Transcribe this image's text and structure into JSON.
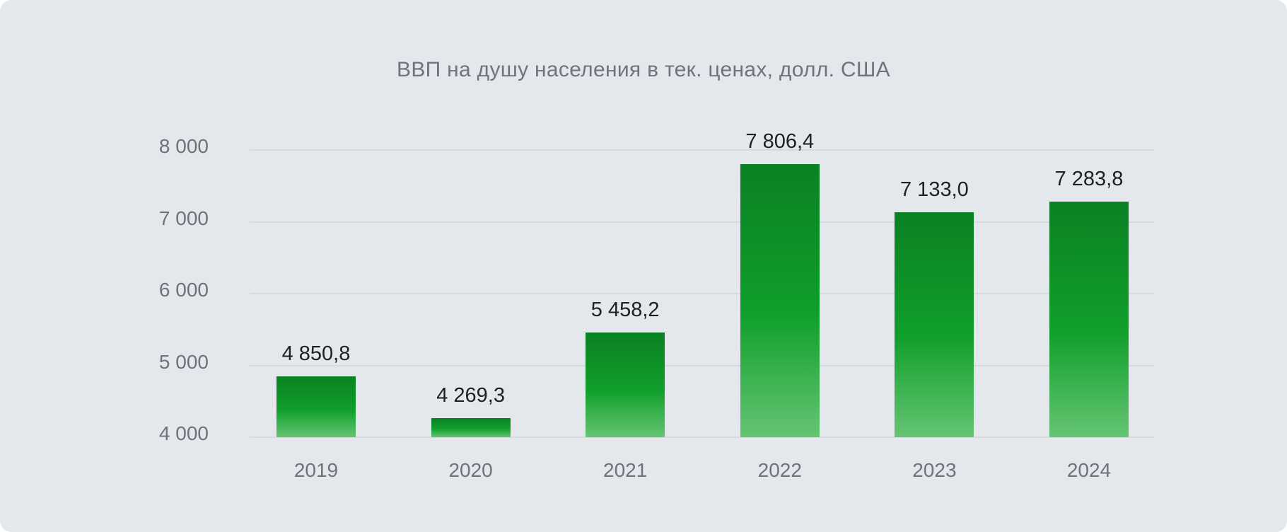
{
  "chart_data": {
    "type": "bar",
    "title": "ВВП на душу населения в тек. ценах, долл. США",
    "categories": [
      "2019",
      "2020",
      "2021",
      "2022",
      "2023",
      "2024"
    ],
    "values": [
      4850.8,
      4269.3,
      5458.2,
      7806.4,
      7133.0,
      7283.8
    ],
    "value_labels": [
      "4 850,8",
      "4 269,3",
      "5 458,2",
      "7 806,4",
      "7 133,0",
      "7 283,8"
    ],
    "y_ticks": [
      {
        "value": 8000,
        "label": "8 000"
      },
      {
        "value": 7000,
        "label": "7 000"
      },
      {
        "value": 6000,
        "label": "6 000"
      },
      {
        "value": 5000,
        "label": "5 000"
      },
      {
        "value": 4000,
        "label": "4 000"
      }
    ],
    "ylim": [
      4000,
      8000
    ],
    "xlabel": "",
    "ylabel": "",
    "grid": "horizontal-only",
    "legend": "none"
  },
  "colors": {
    "background": "#e4e8ec",
    "gridline": "#d5dadd",
    "title_text": "#6e747b",
    "axis_text": "#6d7379",
    "value_text": "#1d2126",
    "bar_gradient_top": "#0a8123",
    "bar_gradient_mid": "#109f2b",
    "bar_gradient_bottom": "#65c473"
  }
}
